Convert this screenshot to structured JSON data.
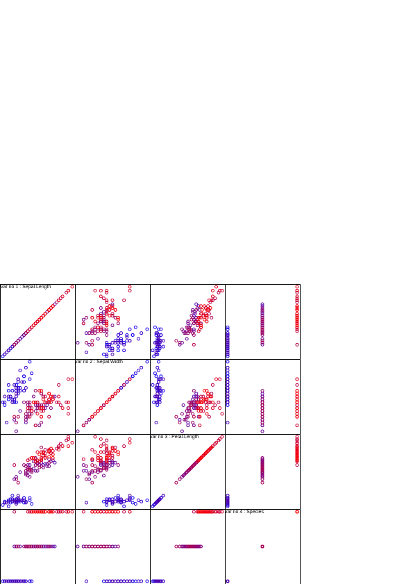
{
  "chart_data": {
    "type": "scatter-matrix",
    "variables": [
      {
        "title": "var no 1 : Sepal.Length",
        "range": [
          4.3,
          7.9
        ]
      },
      {
        "title": "var no 2 : Sepal.Width",
        "range": [
          2.0,
          4.4
        ]
      },
      {
        "title": "var no 3 : Petal.Length",
        "range": [
          1.0,
          6.9
        ]
      },
      {
        "title": "var no 4 : Species",
        "range": [
          1,
          3
        ]
      }
    ],
    "colors": {
      "low": "#0000ff",
      "high": "#ff0000",
      "frame": "#000000"
    },
    "groups": [
      {
        "species": 1,
        "sepal_length": [
          5.1,
          4.9,
          4.7,
          4.6,
          5.0,
          5.4,
          4.6,
          5.0,
          4.4,
          4.9,
          5.4,
          4.8,
          4.8,
          4.3,
          5.8,
          5.7,
          5.4,
          5.1,
          5.7,
          5.1,
          5.4,
          5.1,
          4.6,
          5.1,
          4.8,
          5.0,
          5.0,
          5.2,
          5.2,
          4.7,
          4.8,
          5.4,
          5.2,
          5.5,
          4.9,
          5.0,
          5.5,
          4.9,
          4.4,
          5.1,
          5.0,
          4.5,
          4.4,
          5.0,
          5.1,
          4.8,
          5.1,
          4.6,
          5.3,
          5.0
        ],
        "sepal_width": [
          3.5,
          3.0,
          3.2,
          3.1,
          3.6,
          3.9,
          3.4,
          3.4,
          2.9,
          3.1,
          3.7,
          3.4,
          3.0,
          3.0,
          4.0,
          4.4,
          3.9,
          3.5,
          3.8,
          3.8,
          3.4,
          3.7,
          3.6,
          3.3,
          3.4,
          3.0,
          3.4,
          3.5,
          3.4,
          3.2,
          3.1,
          3.4,
          4.1,
          4.2,
          3.1,
          3.2,
          3.5,
          3.6,
          3.0,
          3.4,
          3.5,
          2.3,
          3.2,
          3.5,
          3.8,
          3.0,
          3.8,
          3.2,
          3.7,
          3.3
        ],
        "petal_length": [
          1.4,
          1.4,
          1.3,
          1.5,
          1.4,
          1.7,
          1.4,
          1.5,
          1.4,
          1.5,
          1.5,
          1.6,
          1.4,
          1.1,
          1.2,
          1.5,
          1.3,
          1.4,
          1.7,
          1.5,
          1.7,
          1.5,
          1.0,
          1.7,
          1.9,
          1.6,
          1.6,
          1.5,
          1.4,
          1.6,
          1.6,
          1.5,
          1.5,
          1.4,
          1.5,
          1.2,
          1.3,
          1.4,
          1.3,
          1.5,
          1.3,
          1.3,
          1.3,
          1.6,
          1.9,
          1.4,
          1.6,
          1.4,
          1.5,
          1.4
        ]
      },
      {
        "species": 2,
        "sepal_length": [
          7.0,
          6.4,
          6.9,
          5.5,
          6.5,
          5.7,
          6.3,
          4.9,
          6.6,
          5.2,
          5.0,
          5.9,
          6.0,
          6.1,
          5.6,
          6.7,
          5.6,
          5.8,
          6.2,
          5.6,
          5.9,
          6.1,
          6.3,
          6.1,
          6.4,
          6.6,
          6.8,
          6.7,
          6.0,
          5.7,
          5.5,
          5.5,
          5.8,
          6.0,
          5.4,
          6.0,
          6.7,
          6.3,
          5.6,
          5.5,
          5.5,
          6.1,
          5.8,
          5.0,
          5.6,
          5.7,
          5.7,
          6.2,
          5.1,
          5.7
        ],
        "sepal_width": [
          3.2,
          3.2,
          3.1,
          2.3,
          2.8,
          2.8,
          3.3,
          2.4,
          2.9,
          2.7,
          2.0,
          3.0,
          2.2,
          2.9,
          2.9,
          3.1,
          3.0,
          2.7,
          2.2,
          2.5,
          3.2,
          2.8,
          2.5,
          2.8,
          2.9,
          3.0,
          2.8,
          3.0,
          2.9,
          2.6,
          2.4,
          2.4,
          2.7,
          2.7,
          3.0,
          3.4,
          3.1,
          2.3,
          3.0,
          2.5,
          2.6,
          3.0,
          2.6,
          2.3,
          2.7,
          3.0,
          2.9,
          2.9,
          2.5,
          2.8
        ],
        "petal_length": [
          4.7,
          4.5,
          4.9,
          4.0,
          4.6,
          4.5,
          4.7,
          3.3,
          4.6,
          3.9,
          3.5,
          4.2,
          4.0,
          4.7,
          3.6,
          4.4,
          4.5,
          4.1,
          4.5,
          3.9,
          4.8,
          4.0,
          4.9,
          4.7,
          4.3,
          4.4,
          4.8,
          5.0,
          4.5,
          3.5,
          3.8,
          3.7,
          3.9,
          5.1,
          4.5,
          4.5,
          4.7,
          4.4,
          4.1,
          4.0,
          4.4,
          4.6,
          4.0,
          3.3,
          4.2,
          4.2,
          4.2,
          4.3,
          3.0,
          4.1
        ]
      },
      {
        "species": 3,
        "sepal_length": [
          6.3,
          5.8,
          7.1,
          6.3,
          6.5,
          7.6,
          4.9,
          7.3,
          6.7,
          7.2,
          6.5,
          6.4,
          6.8,
          5.7,
          5.8,
          6.4,
          6.5,
          7.7,
          7.7,
          6.0,
          6.9,
          5.6,
          7.7,
          6.3,
          6.7,
          7.2,
          6.2,
          6.1,
          6.4,
          7.2,
          7.4,
          7.9,
          6.4,
          6.3,
          6.1,
          7.7,
          6.3,
          6.4,
          6.0,
          6.9,
          6.7,
          6.9,
          5.8,
          6.8,
          6.7,
          6.7,
          6.3,
          6.5,
          6.2,
          5.9
        ],
        "sepal_width": [
          3.3,
          2.7,
          3.0,
          2.9,
          3.0,
          3.0,
          2.5,
          2.9,
          2.5,
          3.6,
          3.2,
          2.7,
          3.0,
          2.5,
          2.8,
          3.2,
          3.0,
          3.8,
          2.6,
          2.2,
          3.2,
          2.8,
          2.8,
          2.7,
          3.3,
          3.2,
          2.8,
          3.0,
          2.8,
          3.0,
          2.8,
          3.8,
          2.8,
          2.8,
          2.6,
          3.0,
          3.4,
          3.1,
          3.0,
          3.1,
          3.1,
          3.1,
          2.7,
          3.2,
          3.3,
          3.0,
          2.5,
          3.0,
          3.4,
          3.0
        ],
        "petal_length": [
          6.0,
          5.1,
          5.9,
          5.6,
          5.8,
          6.6,
          4.5,
          6.3,
          5.8,
          6.1,
          5.1,
          5.3,
          5.5,
          5.0,
          5.1,
          5.3,
          5.5,
          6.7,
          6.9,
          5.0,
          5.7,
          4.9,
          6.7,
          4.9,
          5.7,
          6.0,
          4.8,
          4.9,
          5.6,
          5.8,
          6.1,
          6.4,
          5.6,
          5.1,
          5.6,
          6.1,
          5.6,
          5.5,
          4.8,
          5.4,
          5.6,
          5.1,
          5.1,
          5.9,
          5.7,
          5.2,
          5.0,
          5.2,
          5.4,
          5.1
        ]
      }
    ]
  }
}
